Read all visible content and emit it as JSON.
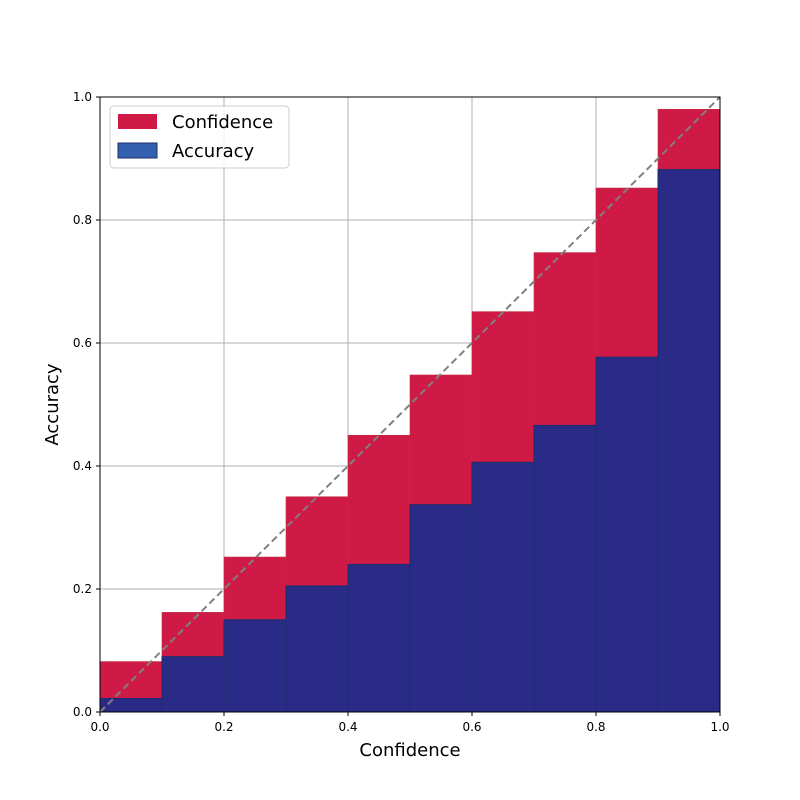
{
  "chart_data": {
    "type": "bar",
    "xlabel": "Confidence",
    "ylabel": "Accuracy",
    "xlim": [
      0,
      1
    ],
    "ylim": [
      0,
      1
    ],
    "grid": true,
    "legend_position": "top-left",
    "xticks": [
      "0.0",
      "0.2",
      "0.4",
      "0.6",
      "0.8",
      "1.0"
    ],
    "yticks": [
      "0.0",
      "0.2",
      "0.4",
      "0.6",
      "0.8",
      "1.0"
    ],
    "bins": [
      {
        "x0": 0.0,
        "x1": 0.1
      },
      {
        "x0": 0.1,
        "x1": 0.2
      },
      {
        "x0": 0.2,
        "x1": 0.3
      },
      {
        "x0": 0.3,
        "x1": 0.4
      },
      {
        "x0": 0.4,
        "x1": 0.5
      },
      {
        "x0": 0.5,
        "x1": 0.6
      },
      {
        "x0": 0.6,
        "x1": 0.7
      },
      {
        "x0": 0.7,
        "x1": 0.8
      },
      {
        "x0": 0.8,
        "x1": 0.9
      },
      {
        "x0": 0.9,
        "x1": 1.0
      }
    ],
    "series": [
      {
        "name": "Confidence",
        "color": "#d01a46",
        "values": [
          0.082,
          0.162,
          0.252,
          0.35,
          0.45,
          0.548,
          0.651,
          0.747,
          0.852,
          0.98
        ]
      },
      {
        "name": "Accuracy",
        "color": "#2a2b87",
        "edge_color": "#1b2f6b",
        "values": [
          0.022,
          0.09,
          0.15,
          0.205,
          0.24,
          0.337,
          0.406,
          0.466,
          0.577,
          0.882
        ]
      }
    ],
    "reference_line": {
      "from": [
        0,
        0
      ],
      "to": [
        1,
        1
      ],
      "style": "dashed",
      "color": "#808080"
    },
    "legend_colors": {
      "Confidence": "#d01a46",
      "Accuracy": "#3560b0"
    }
  }
}
